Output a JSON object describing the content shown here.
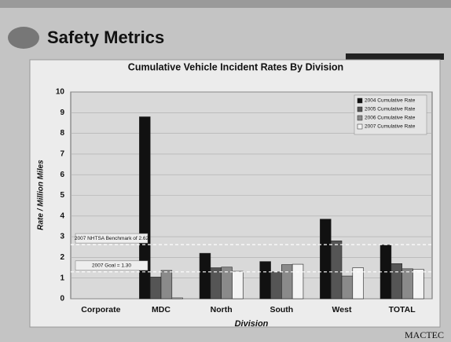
{
  "slide_title": "Safety Metrics",
  "logo": "MACTEC",
  "chart_data": {
    "type": "bar",
    "title": "Cumulative Vehicle Incident Rates By Division",
    "x_label": "Division",
    "y_label": "Rate / Million Miles",
    "categories": [
      "Corporate",
      "MDC",
      "North",
      "South",
      "West",
      "TOTAL"
    ],
    "series": [
      {
        "name": "2004 Cumulative Rate",
        "color": "#111111",
        "values": [
          0,
          8.8,
          2.2,
          1.8,
          3.85,
          2.6
        ]
      },
      {
        "name": "2005 Cumulative Rate",
        "color": "#555555",
        "values": [
          0,
          1.05,
          1.5,
          1.3,
          2.8,
          1.7
        ]
      },
      {
        "name": "2006 Cumulative Rate",
        "color": "#8a8a8a",
        "values": [
          0,
          1.37,
          1.53,
          1.65,
          1.1,
          1.45
        ]
      },
      {
        "name": "2007 Cumulative Rate",
        "color": "#f4f4f4",
        "values": [
          0,
          0.04,
          1.33,
          1.67,
          1.5,
          1.43
        ]
      }
    ],
    "reference_lines": [
      {
        "value": 2.62,
        "label": "2007 NHTSA Benchmark of 2.62"
      },
      {
        "value": 1.3,
        "label": "2007 Goal = 1.30"
      }
    ],
    "ylim": [
      0,
      10
    ],
    "yticks": [
      0,
      1,
      2,
      3,
      4,
      5,
      6,
      7,
      8,
      9,
      10
    ],
    "grid": true,
    "legend": "upper right"
  }
}
